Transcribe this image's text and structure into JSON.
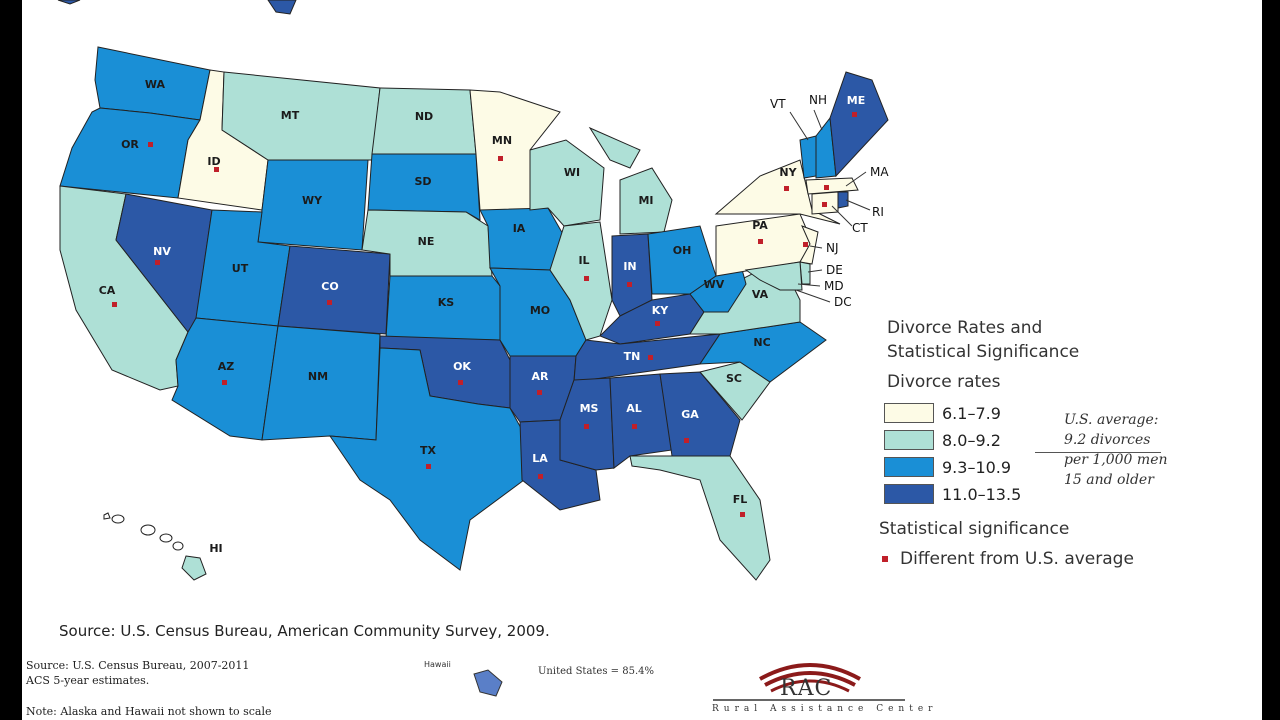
{
  "legend": {
    "title_line1": "Divorce Rates and",
    "title_line2": "Statistical Significance",
    "subtitle": "Divorce rates",
    "categories": [
      {
        "range": "6.1–7.9",
        "color": "#fdfbe6"
      },
      {
        "range": "8.0–9.2",
        "color": "#aee0d6"
      },
      {
        "range": "9.3–10.9",
        "color": "#1a8fd6"
      },
      {
        "range": "11.0–13.5",
        "color": "#2c58a6"
      }
    ],
    "us_average": [
      "U.S. average:",
      "9.2 divorces",
      "per 1,000 men",
      "15 and older"
    ],
    "significance_title": "Statistical significance",
    "significance_item": "Different from U.S. average",
    "significance_color": "#c0202a"
  },
  "states": {
    "WA": "WA",
    "OR": "OR",
    "CA": "CA",
    "NV": "NV",
    "ID": "ID",
    "MT": "MT",
    "WY": "WY",
    "UT": "UT",
    "AZ": "AZ",
    "CO": "CO",
    "NM": "NM",
    "ND": "ND",
    "SD": "SD",
    "NE": "NE",
    "KS": "KS",
    "OK": "OK",
    "TX": "TX",
    "MN": "MN",
    "IA": "IA",
    "MO": "MO",
    "AR": "AR",
    "LA": "LA",
    "WI": "WI",
    "IL": "IL",
    "MI": "MI",
    "IN": "IN",
    "OH": "OH",
    "KY": "KY",
    "TN": "TN",
    "MS": "MS",
    "AL": "AL",
    "GA": "GA",
    "FL": "FL",
    "SC": "SC",
    "NC": "NC",
    "VA": "VA",
    "WV": "WV",
    "PA": "PA",
    "NY": "NY",
    "VT": "VT",
    "NH": "NH",
    "ME": "ME",
    "MA": "MA",
    "CT": "CT",
    "RI": "RI",
    "NJ": "NJ",
    "DE": "DE",
    "MD": "MD",
    "DC": "DC",
    "HI": "HI"
  },
  "source_main": "Source: U.S. Census Bureau, American Community Survey, 2009.",
  "bottom": {
    "source_line1": "Source: U.S. Census Bureau, 2007-2011",
    "source_line2": "ACS 5-year estimates.",
    "note": "Note: Alaska and Hawaii not shown to scale",
    "hawaii_label": "Hawaii",
    "us_value": "United States = 85.4%"
  },
  "logo": {
    "text": "RAC",
    "subtitle": "Rural Assistance Center"
  }
}
